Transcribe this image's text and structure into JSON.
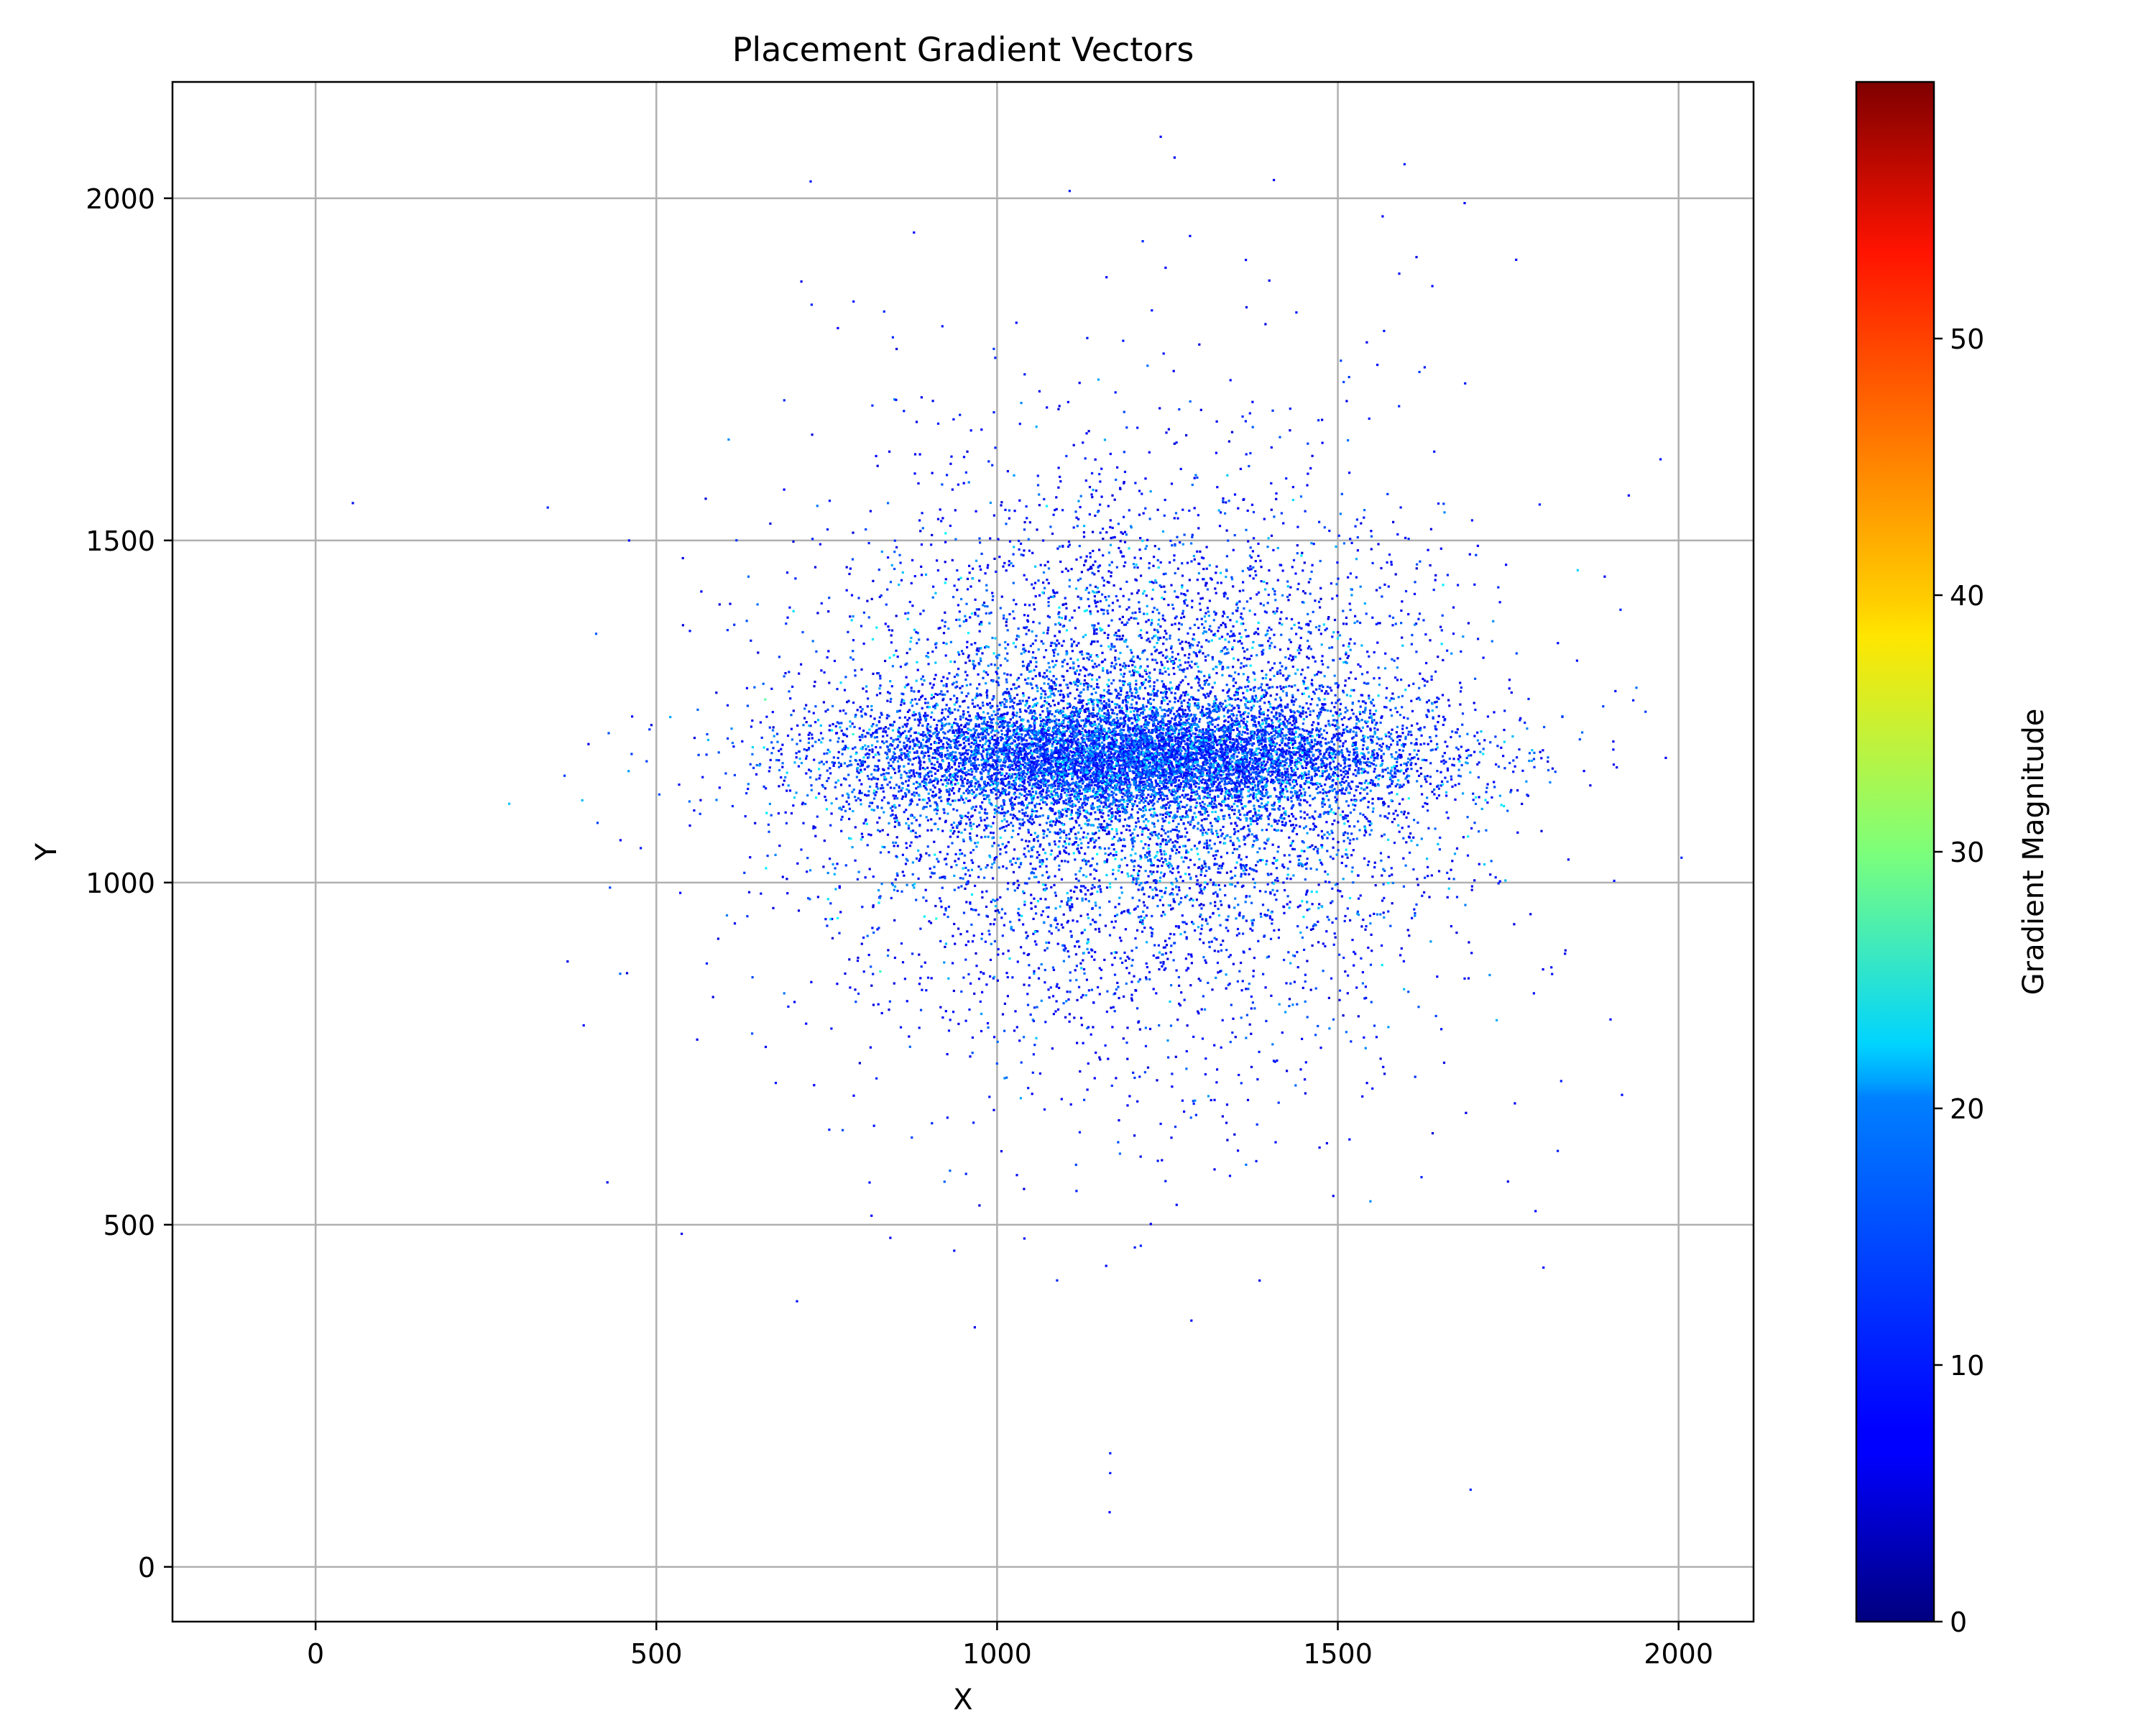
{
  "chart_data": {
    "type": "scatter",
    "title": "Placement Gradient Vectors",
    "xlabel": "X",
    "ylabel": "Y",
    "xlim": [
      -210,
      2110
    ],
    "ylim": [
      -80,
      2170
    ],
    "xticks": [
      0,
      500,
      1000,
      1500,
      2000
    ],
    "yticks": [
      0,
      500,
      1000,
      1500,
      2000
    ],
    "grid": true,
    "colormap": "jet",
    "colorbar": {
      "label": "Gradient Magnitude",
      "range": [
        0,
        60
      ],
      "ticks": [
        0,
        10,
        20,
        30,
        40,
        50
      ]
    },
    "cluster": {
      "center": [
        1200,
        1180
      ],
      "band_y_range": [
        1150,
        1220
      ],
      "band_x_range": [
        730,
        1680
      ],
      "description_values": "dense band of ~thousands of small vectors, magnitudes mostly 5-20"
    },
    "outlier_points": [
      {
        "x": 1240,
        "y": 2090,
        "m": 8
      },
      {
        "x": 878,
        "y": 1950,
        "m": 8
      },
      {
        "x": 1283,
        "y": 1945,
        "m": 8
      },
      {
        "x": 1365,
        "y": 1910,
        "m": 8
      },
      {
        "x": 1590,
        "y": 1890,
        "m": 8
      },
      {
        "x": 460,
        "y": 1500,
        "m": 8
      },
      {
        "x": 1900,
        "y": 800,
        "m": 8
      },
      {
        "x": 1790,
        "y": 520,
        "m": 8
      },
      {
        "x": 1285,
        "y": 360,
        "m": 8
      },
      {
        "x": 1165,
        "y": 80,
        "m": 8
      },
      {
        "x": 535,
        "y": 985,
        "m": 8
      },
      {
        "x": 1160,
        "y": 440,
        "m": 8
      },
      {
        "x": 1040,
        "y": 480,
        "m": 8
      }
    ]
  },
  "colors": {
    "grid": "#b0b0b0",
    "axes": "#000000"
  }
}
